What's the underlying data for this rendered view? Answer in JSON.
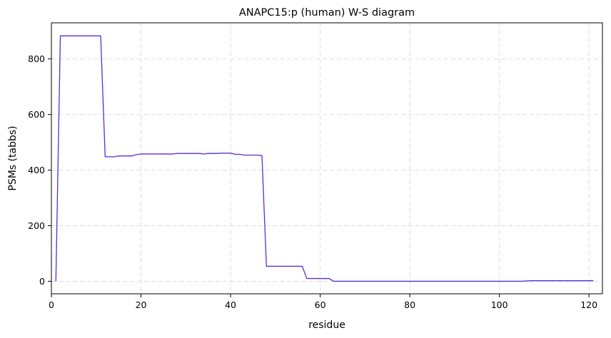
{
  "chart_data": {
    "type": "line",
    "title": "ANAPC15:p (human) W-S diagram",
    "xlabel": "residue",
    "ylabel": "PSMs (tabbs)",
    "xlim": [
      0,
      123
    ],
    "ylim": [
      -45,
      930
    ],
    "xticks": [
      0,
      20,
      40,
      60,
      80,
      100,
      120
    ],
    "yticks": [
      0,
      200,
      400,
      600,
      800
    ],
    "grid": true,
    "line_color": "#5b2bd6",
    "series": [
      {
        "x": [
          1,
          2,
          11,
          12,
          14,
          15,
          18,
          19,
          20,
          27,
          28,
          33,
          34,
          35,
          37,
          38,
          40,
          41,
          42,
          43,
          44,
          45,
          46,
          47,
          48,
          56,
          57,
          62,
          63,
          105,
          107,
          121
        ],
        "y": [
          0,
          883,
          883,
          448,
          448,
          451,
          451,
          456,
          458,
          458,
          460,
          460,
          458,
          460,
          460,
          461,
          461,
          457,
          457,
          454,
          454,
          454,
          454,
          452,
          54,
          54,
          10,
          10,
          0,
          0,
          2,
          2
        ]
      }
    ]
  }
}
